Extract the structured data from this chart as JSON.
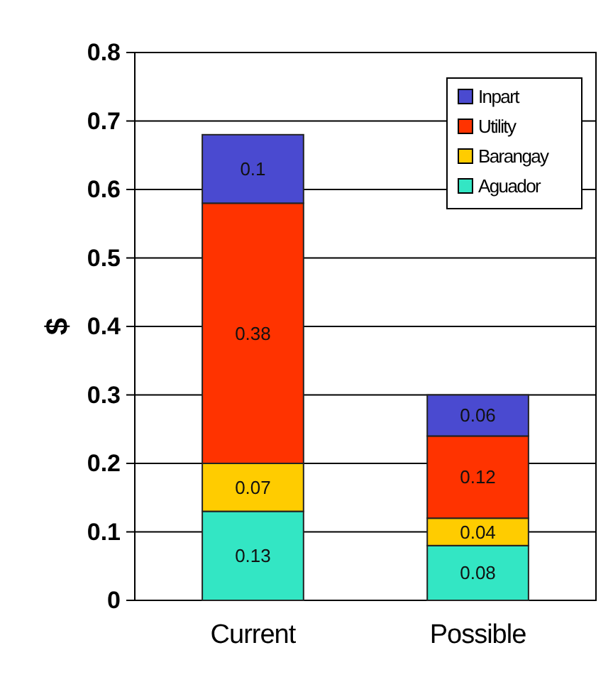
{
  "chart_data": {
    "type": "bar",
    "stacked": true,
    "ylabel": "$",
    "categories": [
      "Current",
      "Possible"
    ],
    "series": [
      {
        "name": "Aguador",
        "color": "#33e6c4",
        "values": [
          0.13,
          0.08
        ]
      },
      {
        "name": "Barangay",
        "color": "#ffcc00",
        "values": [
          0.07,
          0.04
        ]
      },
      {
        "name": "Utility",
        "color": "#ff3300",
        "values": [
          0.38,
          0.12
        ]
      },
      {
        "name": "Inpart",
        "color": "#4a4ad0",
        "values": [
          0.1,
          0.06
        ]
      }
    ],
    "ylim": [
      0,
      0.8
    ],
    "yticks": [
      0,
      0.1,
      0.2,
      0.3,
      0.4,
      0.5,
      0.6,
      0.7,
      0.8
    ],
    "grid": "y",
    "legend": "top right",
    "data_labels": true
  }
}
